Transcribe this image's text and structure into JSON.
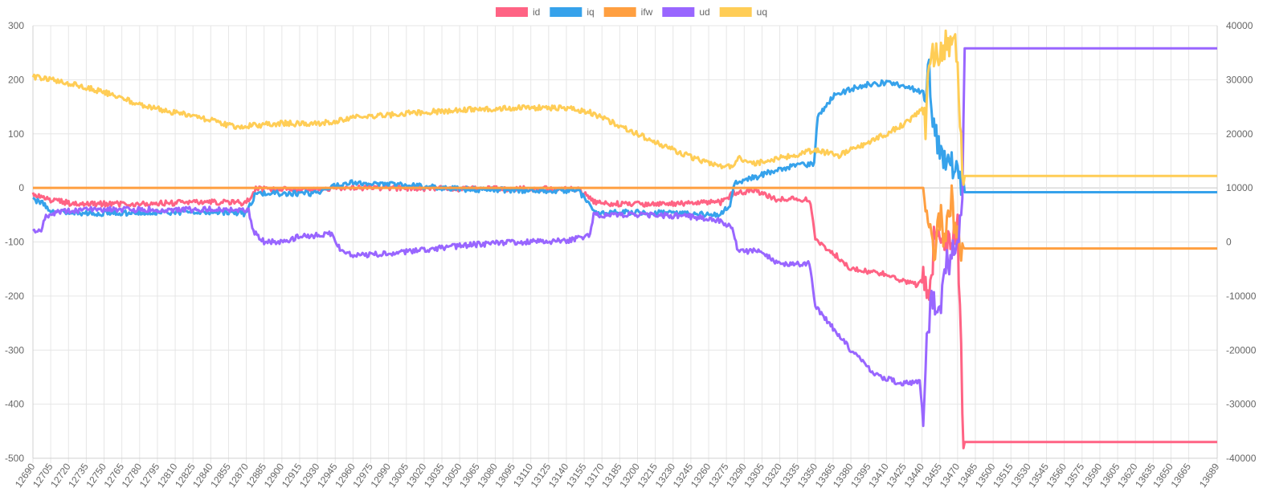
{
  "chart_data": {
    "type": "line",
    "x_start": 12690,
    "x_end": 13689,
    "x_tick_labels": [
      "12690",
      "12705",
      "12720",
      "12735",
      "12750",
      "12765",
      "12780",
      "12795",
      "12810",
      "12825",
      "12840",
      "12855",
      "12870",
      "12885",
      "12900",
      "12915",
      "12930",
      "12945",
      "12960",
      "12975",
      "12990",
      "13005",
      "13020",
      "13035",
      "13050",
      "13065",
      "13080",
      "13095",
      "13110",
      "13125",
      "13140",
      "13155",
      "13170",
      "13185",
      "13200",
      "13215",
      "13230",
      "13245",
      "13260",
      "13275",
      "13290",
      "13305",
      "13320",
      "13335",
      "13350",
      "13365",
      "13380",
      "13395",
      "13410",
      "13425",
      "13440",
      "13455",
      "13470",
      "13485",
      "13500",
      "13515",
      "13530",
      "13545",
      "13560",
      "13575",
      "13590",
      "13605",
      "13620",
      "13635",
      "13650",
      "13665",
      "13689"
    ],
    "y_left": {
      "min": -500,
      "max": 300,
      "ticks": [
        300,
        200,
        100,
        0,
        -100,
        -200,
        -300,
        -400,
        -500
      ]
    },
    "y_right": {
      "min": -40000,
      "max": 40000,
      "ticks": [
        40000,
        30000,
        20000,
        10000,
        0,
        -10000,
        -20000,
        -30000,
        -40000
      ]
    },
    "grid": true,
    "legend_position": "top-center",
    "series": [
      {
        "name": "id",
        "color": "#ff6384",
        "axis": "left",
        "points": [
          [
            12690,
            -10
          ],
          [
            12700,
            -20
          ],
          [
            12720,
            -28
          ],
          [
            12760,
            -30
          ],
          [
            12800,
            -28
          ],
          [
            12840,
            -26
          ],
          [
            12870,
            -28
          ],
          [
            12878,
            -2
          ],
          [
            12900,
            -3
          ],
          [
            12950,
            0
          ],
          [
            13000,
            0
          ],
          [
            13050,
            -2
          ],
          [
            13100,
            -2
          ],
          [
            13150,
            -2
          ],
          [
            13165,
            -28
          ],
          [
            13200,
            -30
          ],
          [
            13240,
            -28
          ],
          [
            13270,
            -27
          ],
          [
            13282,
            -8
          ],
          [
            13300,
            -5
          ],
          [
            13318,
            -22
          ],
          [
            13345,
            -20
          ],
          [
            13350,
            -95
          ],
          [
            13365,
            -120
          ],
          [
            13380,
            -150
          ],
          [
            13410,
            -160
          ],
          [
            13435,
            -180
          ],
          [
            13443,
            -170
          ],
          [
            13446,
            -220
          ],
          [
            13450,
            -100
          ],
          [
            13455,
            -90
          ],
          [
            13465,
            -110
          ],
          [
            13470,
            -70
          ],
          [
            13475,
            -470
          ],
          [
            13689,
            -470
          ]
        ]
      },
      {
        "name": "iq",
        "color": "#36a2eb",
        "axis": "left",
        "points": [
          [
            12690,
            -22
          ],
          [
            12700,
            -30
          ],
          [
            12705,
            -45
          ],
          [
            12740,
            -47
          ],
          [
            12780,
            -46
          ],
          [
            12820,
            -45
          ],
          [
            12860,
            -45
          ],
          [
            12870,
            -48
          ],
          [
            12878,
            -10
          ],
          [
            12900,
            -10
          ],
          [
            12930,
            -10
          ],
          [
            12945,
            5
          ],
          [
            12960,
            10
          ],
          [
            13000,
            5
          ],
          [
            13025,
            2
          ],
          [
            13050,
            -2
          ],
          [
            13100,
            -5
          ],
          [
            13150,
            -5
          ],
          [
            13165,
            -45
          ],
          [
            13200,
            -45
          ],
          [
            13240,
            -48
          ],
          [
            13270,
            -50
          ],
          [
            13278,
            -30
          ],
          [
            13282,
            10
          ],
          [
            13300,
            20
          ],
          [
            13315,
            32
          ],
          [
            13330,
            40
          ],
          [
            13349,
            45
          ],
          [
            13352,
            130
          ],
          [
            13365,
            170
          ],
          [
            13390,
            190
          ],
          [
            13410,
            195
          ],
          [
            13430,
            185
          ],
          [
            13443,
            175
          ],
          [
            13446,
            215
          ],
          [
            13450,
            110
          ],
          [
            13455,
            70
          ],
          [
            13462,
            35
          ],
          [
            13470,
            45
          ],
          [
            13475,
            -8
          ],
          [
            13689,
            -8
          ]
        ]
      },
      {
        "name": "ifw",
        "color": "#ff9f40",
        "axis": "right",
        "points": [
          [
            12690,
            10000
          ],
          [
            13442,
            10000
          ],
          [
            13446,
            2000
          ],
          [
            13450,
            -1000
          ],
          [
            13455,
            5000
          ],
          [
            13460,
            0
          ],
          [
            13465,
            7000
          ],
          [
            13470,
            -500
          ],
          [
            13475,
            -1200
          ],
          [
            13689,
            -1200
          ]
        ]
      },
      {
        "name": "ud",
        "color": "#9966ff",
        "axis": "left",
        "points": [
          [
            12690,
            -82
          ],
          [
            12697,
            -80
          ],
          [
            12700,
            -55
          ],
          [
            12710,
            -45
          ],
          [
            12740,
            -40
          ],
          [
            12780,
            -40
          ],
          [
            12820,
            -40
          ],
          [
            12860,
            -40
          ],
          [
            12872,
            -40
          ],
          [
            12875,
            -78
          ],
          [
            12885,
            -100
          ],
          [
            12900,
            -100
          ],
          [
            12915,
            -90
          ],
          [
            12930,
            -88
          ],
          [
            12943,
            -85
          ],
          [
            12948,
            -110
          ],
          [
            12960,
            -125
          ],
          [
            13000,
            -120
          ],
          [
            13030,
            -112
          ],
          [
            13060,
            -105
          ],
          [
            13100,
            -100
          ],
          [
            13140,
            -98
          ],
          [
            13155,
            -90
          ],
          [
            13160,
            -85
          ],
          [
            13163,
            -50
          ],
          [
            13200,
            -50
          ],
          [
            13240,
            -52
          ],
          [
            13270,
            -60
          ],
          [
            13280,
            -75
          ],
          [
            13285,
            -120
          ],
          [
            13300,
            -115
          ],
          [
            13320,
            -140
          ],
          [
            13345,
            -140
          ],
          [
            13350,
            -220
          ],
          [
            13365,
            -260
          ],
          [
            13380,
            -300
          ],
          [
            13400,
            -345
          ],
          [
            13420,
            -360
          ],
          [
            13438,
            -360
          ],
          [
            13441,
            -420
          ],
          [
            13445,
            -250
          ],
          [
            13450,
            -200
          ],
          [
            13455,
            -240
          ],
          [
            13460,
            -140
          ],
          [
            13468,
            -120
          ],
          [
            13474,
            -40
          ],
          [
            13476,
            258
          ],
          [
            13689,
            258
          ]
        ]
      },
      {
        "name": "uq",
        "color": "#ffcd56",
        "axis": "left",
        "points": [
          [
            12690,
            205
          ],
          [
            12705,
            200
          ],
          [
            12720,
            193
          ],
          [
            12740,
            183
          ],
          [
            12760,
            170
          ],
          [
            12780,
            155
          ],
          [
            12800,
            143
          ],
          [
            12820,
            135
          ],
          [
            12840,
            125
          ],
          [
            12860,
            113
          ],
          [
            12875,
            115
          ],
          [
            12900,
            120
          ],
          [
            12920,
            118
          ],
          [
            12945,
            122
          ],
          [
            12960,
            130
          ],
          [
            12990,
            135
          ],
          [
            13020,
            140
          ],
          [
            13060,
            145
          ],
          [
            13100,
            148
          ],
          [
            13140,
            148
          ],
          [
            13160,
            140
          ],
          [
            13180,
            120
          ],
          [
            13200,
            100
          ],
          [
            13220,
            80
          ],
          [
            13240,
            62
          ],
          [
            13260,
            45
          ],
          [
            13280,
            38
          ],
          [
            13285,
            55
          ],
          [
            13300,
            45
          ],
          [
            13320,
            55
          ],
          [
            13340,
            65
          ],
          [
            13350,
            70
          ],
          [
            13370,
            60
          ],
          [
            13390,
            80
          ],
          [
            13410,
            100
          ],
          [
            13430,
            125
          ],
          [
            13442,
            150
          ],
          [
            13443,
            100
          ],
          [
            13445,
            230
          ],
          [
            13450,
            245
          ],
          [
            13460,
            262
          ],
          [
            13470,
            255
          ],
          [
            13474,
            22
          ],
          [
            13689,
            22
          ]
        ]
      }
    ]
  }
}
